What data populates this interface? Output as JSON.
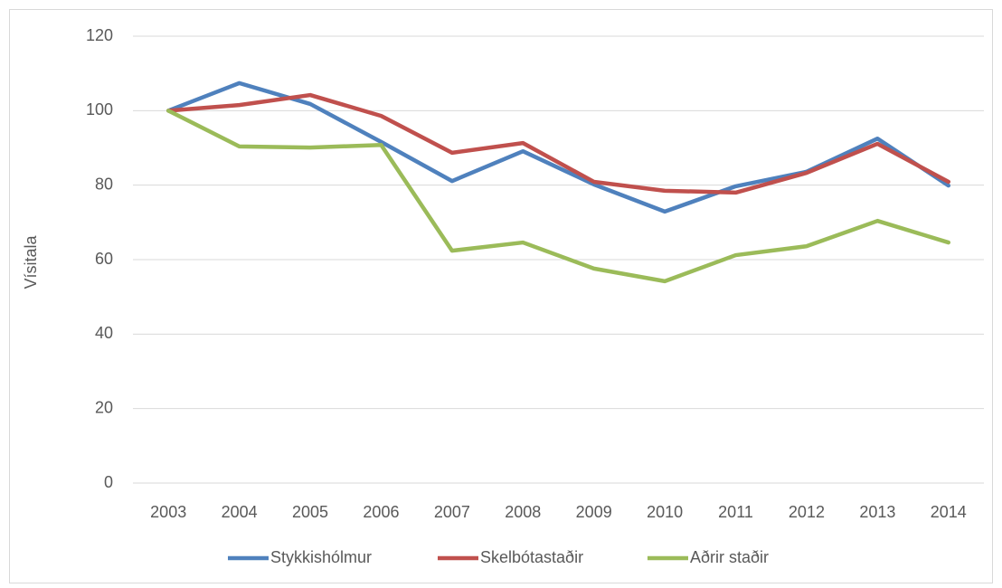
{
  "chart_data": {
    "type": "line",
    "ylabel": "Vísitala",
    "categories": [
      "2003",
      "2004",
      "2005",
      "2006",
      "2007",
      "2008",
      "2009",
      "2010",
      "2011",
      "2012",
      "2013",
      "2014"
    ],
    "series": [
      {
        "name": "Stykkishólmur",
        "color": "#4f81bd",
        "values": [
          100,
          107.4,
          101.8,
          91.6,
          81.1,
          89.1,
          80.2,
          72.9,
          79.7,
          83.6,
          92.5,
          79.9
        ]
      },
      {
        "name": "Skelbótastaðir",
        "color": "#c0504d",
        "values": [
          100,
          101.5,
          104.2,
          98.6,
          88.7,
          91.3,
          80.9,
          78.5,
          78,
          83.3,
          91.1,
          80.9
        ]
      },
      {
        "name": "Aðrir staðir",
        "color": "#9bbb59",
        "values": [
          100,
          90.4,
          90.1,
          90.8,
          62.4,
          64.6,
          57.6,
          54.2,
          61.2,
          63.6,
          70.4,
          64.6
        ]
      }
    ],
    "ylim": [
      0,
      120
    ],
    "yticks": [
      0,
      20,
      40,
      60,
      80,
      100,
      120
    ],
    "grid": true,
    "legend": "bottom"
  }
}
